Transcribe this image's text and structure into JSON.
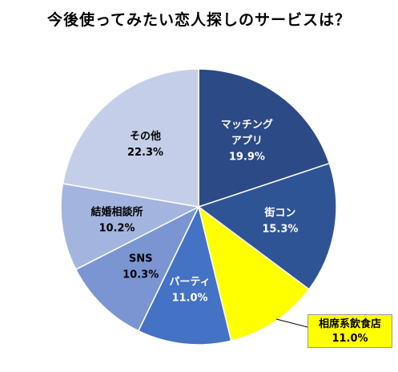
{
  "chart_data": {
    "type": "pie",
    "title": "今後使ってみたい恋人探しのサービスは？",
    "slices": [
      {
        "name": "マッチングアプリ",
        "label_lines": [
          "マッチング",
          "アプリ"
        ],
        "value": 19.9,
        "value_label": "19.9%",
        "color": "#2b4a86",
        "text_color": "#ffffff"
      },
      {
        "name": "街コン",
        "label_lines": [
          "街コン"
        ],
        "value": 15.3,
        "value_label": "15.3%",
        "color": "#2f5496",
        "text_color": "#ffffff"
      },
      {
        "name": "相席系飲食店",
        "label_lines": [
          "相席系飲食店"
        ],
        "value": 11.0,
        "value_label": "11.0%",
        "color": "#ffff00",
        "text_color": "#000000",
        "callout": true
      },
      {
        "name": "パーティ",
        "label_lines": [
          "パーティ"
        ],
        "value": 11.0,
        "value_label": "11.0%",
        "color": "#4472c4",
        "text_color": "#ffffff"
      },
      {
        "name": "SNS",
        "label_lines": [
          "SNS"
        ],
        "value": 10.3,
        "value_label": "10.3%",
        "color": "#7a95d2",
        "text_color": "#000000"
      },
      {
        "name": "結婚相談所",
        "label_lines": [
          "結婚相談所"
        ],
        "value": 10.2,
        "value_label": "10.2%",
        "color": "#a3b4df",
        "text_color": "#000000"
      },
      {
        "name": "その他",
        "label_lines": [
          "その他"
        ],
        "value": 22.3,
        "value_label": "22.3%",
        "color": "#c5cee9",
        "text_color": "#000000"
      }
    ],
    "start_angle_deg": 0,
    "direction": "clockwise",
    "legend": "none"
  }
}
